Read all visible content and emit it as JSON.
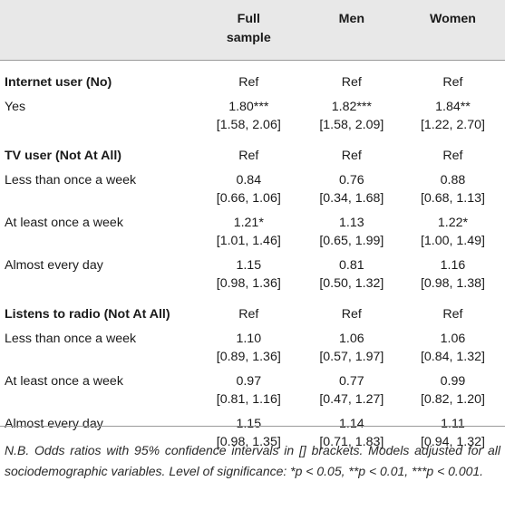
{
  "columns": {
    "full": "Full sample",
    "men": "Men",
    "women": "Women"
  },
  "sections": [
    {
      "header": "Internet user (No)",
      "ref": [
        "Ref",
        "Ref",
        "Ref"
      ],
      "rows": [
        {
          "label": "Yes",
          "or": [
            "1.80***",
            "1.82***",
            "1.84**"
          ],
          "ci": [
            "[1.58, 2.06]",
            "[1.58, 2.09]",
            "[1.22, 2.70]"
          ]
        }
      ]
    },
    {
      "header": "TV user (Not At All)",
      "ref": [
        "Ref",
        "Ref",
        "Ref"
      ],
      "rows": [
        {
          "label": "Less than once a week",
          "or": [
            "0.84",
            "0.76",
            "0.88"
          ],
          "ci": [
            "[0.66, 1.06]",
            "[0.34, 1.68]",
            "[0.68, 1.13]"
          ]
        },
        {
          "label": "At least once a week",
          "or": [
            "1.21*",
            "1.13",
            "1.22*"
          ],
          "ci": [
            "[1.01, 1.46]",
            "[0.65, 1.99]",
            "[1.00, 1.49]"
          ]
        },
        {
          "label": "Almost every day",
          "or": [
            "1.15",
            "0.81",
            "1.16"
          ],
          "ci": [
            "[0.98, 1.36]",
            "[0.50, 1.32]",
            "[0.98, 1.38]"
          ]
        }
      ]
    },
    {
      "header": "Listens to radio (Not At All)",
      "ref": [
        "Ref",
        "Ref",
        "Ref"
      ],
      "rows": [
        {
          "label": "Less than once a week",
          "or": [
            "1.10",
            "1.06",
            "1.06"
          ],
          "ci": [
            "[0.89, 1.36]",
            "[0.57, 1.97]",
            "[0.84, 1.32]"
          ]
        },
        {
          "label": "At least once a week",
          "or": [
            "0.97",
            "0.77",
            "0.99"
          ],
          "ci": [
            "[0.81, 1.16]",
            "[0.47, 1.27]",
            "[0.82, 1.20]"
          ]
        },
        {
          "label": "Almost every day",
          "or": [
            "1.15",
            "1.14",
            "1.11"
          ],
          "ci": [
            "[0.98, 1.35]",
            "[0.71, 1.83]",
            "[0.94, 1.32]"
          ]
        }
      ]
    }
  ],
  "note": "N.B. Odds ratios with 95% confidence intervals in [] brackets. Models adjusted for all sociodemographic variables. Level of significance: *p < 0.05, **p < 0.01, ***p < 0.001.",
  "colors": {
    "header_background": "#e8e8e8",
    "rule": "#9a9a9a",
    "text": "#1a1a1a"
  }
}
